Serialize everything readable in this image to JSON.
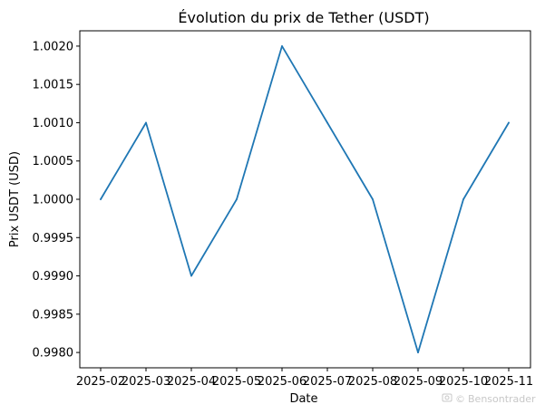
{
  "chart_data": {
    "type": "line",
    "title": "Évolution du prix de Tether (USDT)",
    "xlabel": "Date",
    "ylabel": "Prix USDT (USD)",
    "x": [
      "2025-02",
      "2025-03",
      "2025-04",
      "2025-05",
      "2025-06",
      "2025-07",
      "2025-08",
      "2025-09",
      "2025-10",
      "2025-11"
    ],
    "series": [
      {
        "values": [
          1.0,
          1.001,
          0.999,
          1.0,
          1.002,
          1.001,
          1.0,
          0.998,
          1.0,
          1.001
        ],
        "color": "#1f77b4"
      }
    ],
    "yticks": [
      "0.9980",
      "0.9985",
      "0.9990",
      "0.9995",
      "1.0000",
      "1.0005",
      "1.0010",
      "1.0015",
      "1.0020"
    ],
    "ylim": [
      0.9978,
      1.0022
    ],
    "grid": false,
    "legend": "none"
  },
  "watermark": {
    "text": "Bensontrader",
    "icon": "camera-icon"
  }
}
